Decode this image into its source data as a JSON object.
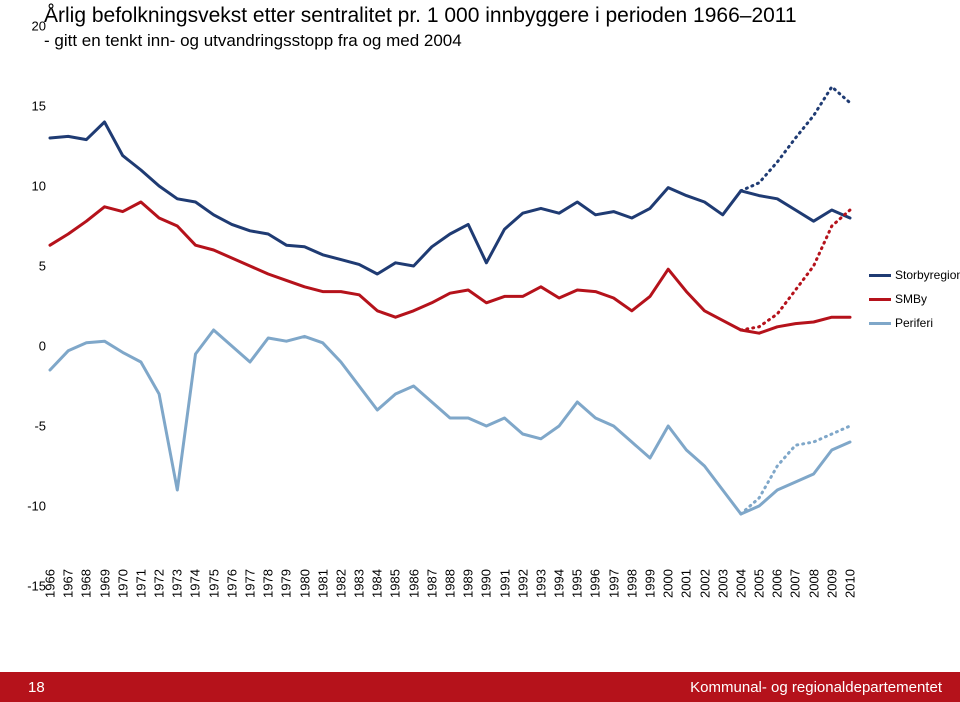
{
  "title": {
    "line1": "Årlig befolkningsvekst etter sentralitet pr. 1 000 innbyggere i perioden 1966–2011",
    "line2": "- gitt en tenkt inn- og utvandringsstopp fra og med 2004",
    "fontsize": 21,
    "sub_fontsize": 17,
    "fontweight": "normal"
  },
  "footer": {
    "page": "18",
    "dept": "Kommunal- og regionaldepartementet",
    "bg": "#b5121b",
    "color": "#ffffff",
    "fontsize": 15
  },
  "axis": {
    "label_fontsize": 13,
    "tick_fontsize": 13,
    "ylim": [
      -15,
      20
    ],
    "ytick_step": 5,
    "yticks": [
      20,
      15,
      10,
      5,
      0,
      -5,
      -10,
      -15
    ],
    "x_categories": [
      "1966",
      "1967",
      "1968",
      "1969",
      "1970",
      "1971",
      "1972",
      "1973",
      "1974",
      "1975",
      "1976",
      "1977",
      "1978",
      "1979",
      "1980",
      "1981",
      "1982",
      "1983",
      "1984",
      "1985",
      "1986",
      "1987",
      "1988",
      "1989",
      "1990",
      "1991",
      "1992",
      "1993",
      "1994",
      "1995",
      "1996",
      "1997",
      "1998",
      "1999",
      "2000",
      "2001",
      "2002",
      "2003",
      "2004",
      "2005",
      "2006",
      "2007",
      "2008",
      "2009",
      "2010"
    ]
  },
  "chart": {
    "type": "line",
    "plot_bg": "#ffffff",
    "line_width": 3,
    "dotted_dash": "1 5",
    "legend_fontsize": 12,
    "series": [
      {
        "name": "Storbyregioner",
        "color": "#1f3b73",
        "solid": [
          13.0,
          13.1,
          12.9,
          14.0,
          11.9,
          11.0,
          10.0,
          9.2,
          9.0,
          8.2,
          7.6,
          7.2,
          7.0,
          6.3,
          6.2,
          5.7,
          5.4,
          5.1,
          4.5,
          5.2,
          5.0,
          6.2,
          7.0,
          7.6,
          5.2,
          7.3,
          8.3,
          8.6,
          8.3,
          9.0,
          8.2,
          8.4,
          8.0,
          8.6,
          9.9,
          9.4,
          9.0,
          8.2,
          9.7,
          9.4,
          9.2,
          8.5,
          7.8,
          8.5,
          8.0
        ],
        "dotted_start_index": 38,
        "dotted": [
          9.7,
          10.2,
          11.5,
          13.0,
          14.4,
          16.2,
          15.2
        ]
      },
      {
        "name": "SMBy",
        "color": "#b5121b",
        "solid": [
          6.3,
          7.0,
          7.8,
          8.7,
          8.4,
          9.0,
          8.0,
          7.5,
          6.3,
          6.0,
          5.5,
          5.0,
          4.5,
          4.1,
          3.7,
          3.4,
          3.4,
          3.2,
          2.2,
          1.8,
          2.2,
          2.7,
          3.3,
          3.5,
          2.7,
          3.1,
          3.1,
          3.7,
          3.0,
          3.5,
          3.4,
          3.0,
          2.2,
          3.1,
          4.8,
          3.4,
          2.2,
          1.6,
          1.0,
          0.8,
          1.2,
          1.4,
          1.5,
          1.8,
          1.8
        ],
        "dotted_start_index": 38,
        "dotted": [
          1.0,
          1.2,
          2.0,
          3.5,
          5.0,
          7.5,
          8.5
        ]
      },
      {
        "name": "Periferi",
        "color": "#7fa7c9",
        "solid": [
          -1.5,
          -0.3,
          0.2,
          0.3,
          -0.4,
          -1.0,
          -3.0,
          -9.0,
          -0.5,
          1.0,
          0.0,
          -1.0,
          0.5,
          0.3,
          0.6,
          0.2,
          -1.0,
          -2.5,
          -4.0,
          -3.0,
          -2.5,
          -3.5,
          -4.5,
          -4.5,
          -5.0,
          -4.5,
          -5.5,
          -5.8,
          -5.0,
          -3.5,
          -4.5,
          -5.0,
          -6.0,
          -7.0,
          -5.0,
          -6.5,
          -7.5,
          -9.0,
          -10.5,
          -10.0,
          -9.0,
          -8.5,
          -8.0,
          -6.5,
          -6.0
        ],
        "dotted_start_index": 38,
        "dotted": [
          -10.5,
          -9.5,
          -7.5,
          -6.2,
          -6.0,
          -5.5,
          -5.0
        ]
      }
    ]
  },
  "legend_labels": {
    "storby": "Storbyregioner",
    "smby": "SMBy",
    "periferi": "Periferi"
  }
}
